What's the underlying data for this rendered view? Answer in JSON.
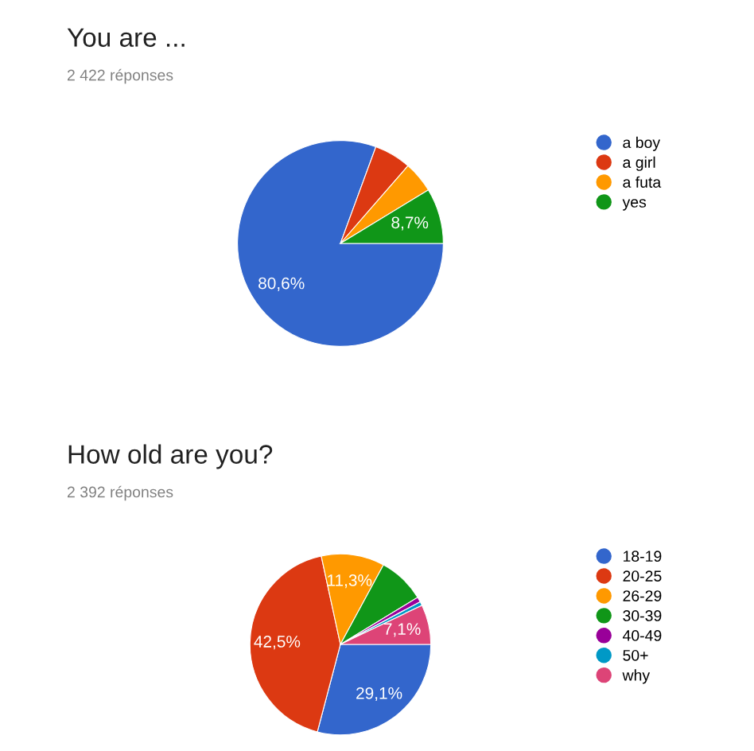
{
  "chart_data": [
    {
      "type": "pie",
      "title": "You are ...",
      "subtitle": "2 422 réponses",
      "categories": [
        "a boy",
        "a girl",
        "a futa",
        "yes"
      ],
      "values": [
        80.6,
        5.8,
        4.9,
        8.7
      ],
      "colors": [
        "#3366cc",
        "#dc3912",
        "#ff9900",
        "#109618"
      ],
      "value_labels": [
        "80,6%",
        null,
        null,
        "8,7%"
      ],
      "legend": "right"
    },
    {
      "type": "pie",
      "title": "How old are you?",
      "subtitle": "2 392 réponses",
      "categories": [
        "18-19",
        "20-25",
        "26-29",
        "30-39",
        "40-49",
        "50+",
        "why"
      ],
      "values": [
        29.1,
        42.5,
        11.3,
        8.4,
        0.9,
        0.7,
        7.1
      ],
      "colors": [
        "#3366cc",
        "#dc3912",
        "#ff9900",
        "#109618",
        "#990099",
        "#0099c6",
        "#dd4477"
      ],
      "value_labels": [
        "29,1%",
        "42,5%",
        "11,3%",
        null,
        null,
        null,
        "7,1%"
      ],
      "legend": "right"
    }
  ]
}
